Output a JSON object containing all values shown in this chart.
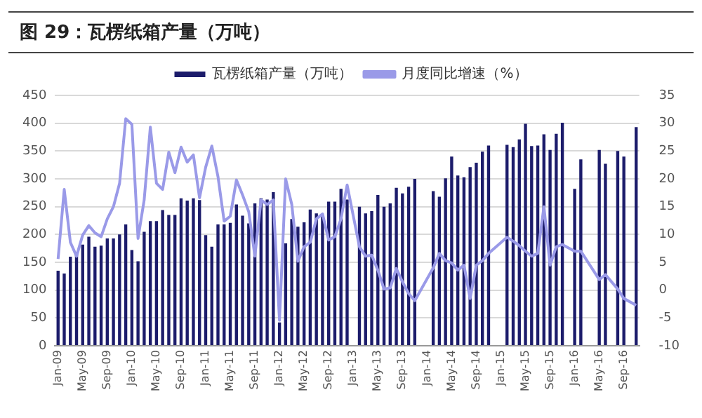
{
  "chart_data": {
    "type": "bar",
    "title": "图 29：瓦楞纸箱产量（万吨）",
    "categories": [
      "Jan-09",
      null,
      null,
      null,
      "May-09",
      null,
      null,
      null,
      "Sep-09",
      null,
      null,
      null,
      "Jan-10",
      null,
      null,
      null,
      "May-10",
      null,
      null,
      null,
      "Sep-10",
      null,
      null,
      null,
      "Jan-11",
      null,
      null,
      null,
      "May-11",
      null,
      null,
      null,
      "Sep-11",
      null,
      null,
      null,
      "Jan-12",
      null,
      null,
      null,
      "May-12",
      null,
      null,
      null,
      "Sep-12",
      null,
      null,
      null,
      "Jan-13",
      null,
      null,
      null,
      "May-13",
      null,
      null,
      null,
      "Sep-13",
      null,
      null,
      null,
      "Jan-14",
      null,
      null,
      null,
      "May-14",
      null,
      null,
      null,
      "Sep-14",
      null,
      null,
      null,
      "Jan-15",
      null,
      null,
      null,
      "May-15",
      null,
      null,
      null,
      "Sep-15",
      null,
      null,
      null,
      "Jan-16",
      null,
      null,
      null,
      "May-16",
      null,
      null,
      null,
      "Sep-16",
      null,
      null
    ],
    "series": [
      {
        "name": "瓦楞纸箱产量（万吨）",
        "color": "#1c1c6b",
        "values": [
          135,
          130,
          160,
          165,
          182,
          196,
          178,
          180,
          193,
          193,
          200,
          218,
          172,
          152,
          205,
          224,
          224,
          244,
          235,
          235,
          265,
          261,
          265,
          262,
          199,
          178,
          218,
          218,
          221,
          254,
          234,
          220,
          256,
          265,
          263,
          276,
          42,
          184,
          228,
          214,
          222,
          245,
          238,
          235,
          259,
          259,
          282,
          263,
          null,
          250,
          238,
          242,
          271,
          250,
          256,
          284,
          274,
          286,
          300,
          null,
          null,
          278,
          268,
          301,
          340,
          306,
          303,
          321,
          329,
          349,
          360,
          null,
          null,
          361,
          357,
          371,
          399,
          359,
          360,
          380,
          352,
          381,
          401,
          null,
          282,
          335,
          null,
          null,
          352,
          327,
          null,
          350,
          340,
          null,
          393
        ]
      },
      {
        "name": "月度同比增速（%）",
        "type": "line",
        "axis": "y2",
        "color": "#9a9ae8",
        "values": [
          5.6,
          18.1,
          8.6,
          6.1,
          9.9,
          11.6,
          10.3,
          9.6,
          12.8,
          15.0,
          19.2,
          30.8,
          29.8,
          9.3,
          16.2,
          29.3,
          19.2,
          18.1,
          24.8,
          21.1,
          25.7,
          23.0,
          24.3,
          16.6,
          22.1,
          25.9,
          20.4,
          12.4,
          13.3,
          19.8,
          17.1,
          14.1,
          6.1,
          16.2,
          15.4,
          16.2,
          -5.4,
          20.0,
          15.4,
          5.2,
          7.8,
          8.6,
          12.8,
          13.7,
          9.0,
          9.6,
          12.8,
          18.9,
          null,
          7.8,
          6.1,
          6.3,
          3.6,
          0.2,
          0.4,
          3.9,
          1.5,
          -0.6,
          -1.9,
          null,
          null,
          4.0,
          6.6,
          5.3,
          4.9,
          3.6,
          4.5,
          -1.5,
          4.5,
          5.3,
          6.6,
          null,
          null,
          9.5,
          8.8,
          8.0,
          7.0,
          6.1,
          6.6,
          15.0,
          4.5,
          7.8,
          8.2,
          null,
          7.0,
          7.0,
          null,
          null,
          1.9,
          2.8,
          null,
          0.2,
          -1.5,
          null,
          -2.7
        ]
      }
    ],
    "ylim": [
      0,
      450
    ],
    "yticks": [
      0,
      50,
      100,
      150,
      200,
      250,
      300,
      350,
      400,
      450
    ],
    "y2lim": [
      -10,
      35
    ],
    "y2ticks": [
      -10,
      -5,
      0,
      5,
      10,
      15,
      20,
      25,
      30,
      35
    ],
    "grid": "y",
    "legend": "top",
    "marker": "none"
  }
}
